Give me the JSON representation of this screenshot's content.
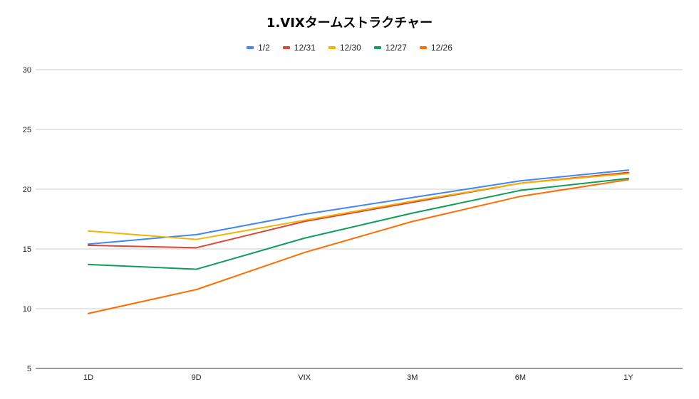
{
  "chart_data": {
    "type": "line",
    "title": "1.VIXタームストラクチャー",
    "xlabel": "",
    "ylabel": "",
    "categories": [
      "1D",
      "9D",
      "VIX",
      "3M",
      "6M",
      "1Y"
    ],
    "ylim": [
      5,
      30
    ],
    "yticks": [
      5,
      10,
      15,
      20,
      25,
      30
    ],
    "grid": true,
    "legend_position": "top",
    "series": [
      {
        "name": "1/2",
        "color": "#4285f4",
        "values": [
          15.4,
          16.2,
          17.9,
          19.3,
          20.7,
          21.6
        ]
      },
      {
        "name": "12/31",
        "color": "#db4437",
        "values": [
          15.3,
          15.1,
          17.3,
          18.9,
          20.5,
          21.4
        ]
      },
      {
        "name": "12/30",
        "color": "#f4b400",
        "values": [
          16.5,
          15.8,
          17.4,
          19.0,
          20.5,
          21.3
        ]
      },
      {
        "name": "12/27",
        "color": "#0f9d58",
        "values": [
          13.7,
          13.3,
          15.9,
          18.0,
          19.9,
          20.9
        ]
      },
      {
        "name": "12/26",
        "color": "#ff6d01",
        "values": [
          9.6,
          11.6,
          14.7,
          17.3,
          19.4,
          20.8
        ]
      }
    ]
  }
}
